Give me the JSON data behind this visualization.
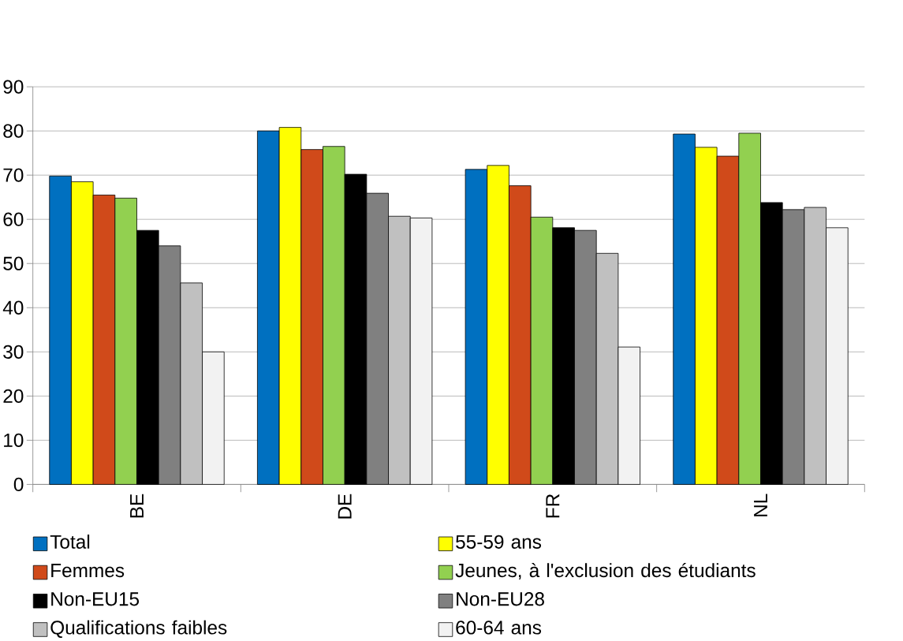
{
  "chart_data": {
    "type": "bar",
    "categories": [
      "BE",
      "DE",
      "FR",
      "NL"
    ],
    "series": [
      {
        "name": "Total",
        "color": "#0070c0",
        "values": [
          69.8,
          80.0,
          71.3,
          79.3
        ]
      },
      {
        "name": "55-59 ans",
        "color": "#ffff00",
        "values": [
          68.5,
          80.8,
          72.2,
          76.3
        ]
      },
      {
        "name": "Femmes",
        "color": "#d04a1a",
        "values": [
          65.5,
          75.8,
          67.6,
          74.3
        ]
      },
      {
        "name": "Jeunes, à l'exclusion des étudiants",
        "color": "#92d050",
        "values": [
          64.8,
          76.5,
          60.5,
          79.5
        ]
      },
      {
        "name": "Non-EU15",
        "color": "#000000",
        "values": [
          57.5,
          70.2,
          58.1,
          63.8
        ]
      },
      {
        "name": "Non-EU28",
        "color": "#808080",
        "values": [
          54.0,
          65.9,
          57.5,
          62.2
        ]
      },
      {
        "name": "Qualifications faibles",
        "color": "#c0c0c0",
        "values": [
          45.6,
          60.7,
          52.3,
          62.7
        ]
      },
      {
        "name": "60-64 ans",
        "color": "#f2f2f2",
        "values": [
          30.0,
          60.3,
          31.1,
          58.1
        ]
      }
    ],
    "ylim": [
      0,
      90
    ],
    "yticks": [
      0,
      10,
      20,
      30,
      40,
      50,
      60,
      70,
      80,
      90
    ],
    "grid": "y",
    "legend": "bottom"
  }
}
